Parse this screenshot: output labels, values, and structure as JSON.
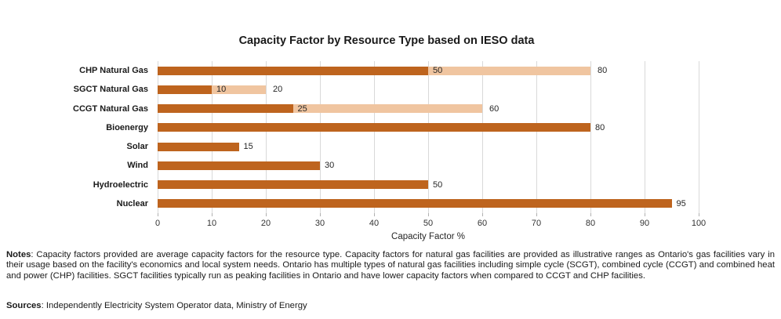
{
  "title": "Capacity Factor by Resource Type based on IESO data",
  "colors": {
    "bar_solid": "#be641e",
    "bar_range": "#f0c5a0",
    "gridline": "#d9d9d9",
    "text": "#262626"
  },
  "chart_data": {
    "type": "bar",
    "orientation": "horizontal",
    "title": "Capacity Factor by Resource Type based on IESO data",
    "xlabel": "Capacity Factor %",
    "ylabel": "",
    "xlim": [
      0,
      100
    ],
    "xticks": [
      0,
      10,
      20,
      30,
      40,
      50,
      60,
      70,
      80,
      90,
      100
    ],
    "grid": true,
    "legend": false,
    "bars": [
      {
        "category": "CHP Natural Gas",
        "value": 50,
        "range_end": 80
      },
      {
        "category": "SGCT Natural Gas",
        "value": 10,
        "range_end": 20
      },
      {
        "category": "CCGT Natural Gas",
        "value": 25,
        "range_end": 60
      },
      {
        "category": "Bioenergy",
        "value": 80,
        "range_end": null
      },
      {
        "category": "Solar",
        "value": 15,
        "range_end": null
      },
      {
        "category": "Wind",
        "value": 30,
        "range_end": null
      },
      {
        "category": "Hydroelectric",
        "value": 50,
        "range_end": null
      },
      {
        "category": "Nuclear",
        "value": 95,
        "range_end": null
      }
    ]
  },
  "notes": {
    "label": "Notes",
    "separator": ": ",
    "text": "Capacity factors provided are average capacity factors for the resource type. Capacity factors for natural gas facilities are provided as illustrative ranges as Ontario's gas facilities vary in their usage based on the facility's economics and local system needs. Ontario has multiple types of natural gas facilities including simple cycle (SCGT), combined cycle (CCGT) and combined heat and power (CHP) facilities. SGCT facilities typically run as peaking facilities in Ontario and have lower capacity factors when compared to CCGT and CHP facilities."
  },
  "sources": {
    "label": "Sources",
    "separator": ": ",
    "text": "Independently Electricity System Operator data, Ministry of Energy"
  }
}
